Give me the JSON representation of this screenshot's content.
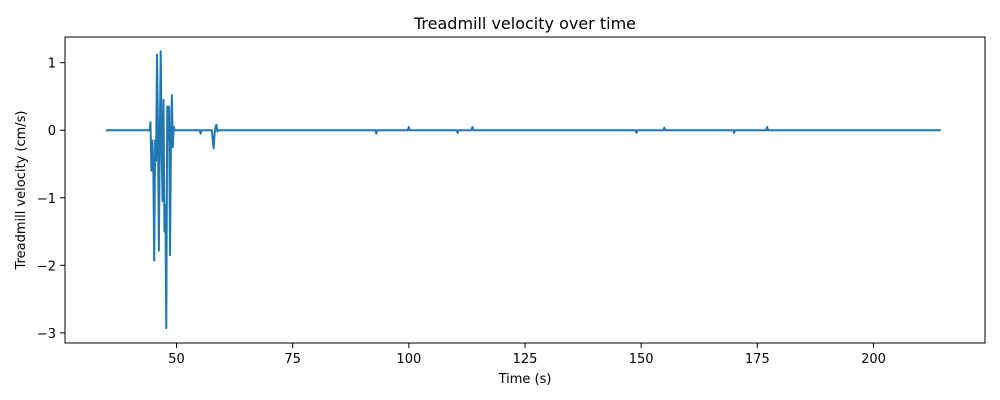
{
  "chart_data": {
    "type": "line",
    "title": "Treadmill velocity over time",
    "xlabel": "Time (s)",
    "ylabel": "Treadmill velocity (cm/s)",
    "xlim": [
      26,
      224
    ],
    "ylim": [
      -3.15,
      1.38
    ],
    "x_ticks": [
      50,
      75,
      100,
      125,
      150,
      175,
      200
    ],
    "x_tick_labels": [
      "50",
      "75",
      "100",
      "125",
      "150",
      "175",
      "200"
    ],
    "y_ticks": [
      1,
      0,
      -1,
      -2,
      -3
    ],
    "y_tick_labels": [
      "1",
      "0",
      "−1",
      "−2",
      "−3"
    ],
    "grid": false,
    "series": [
      {
        "color": "#1f77b4",
        "x": [
          34.8,
          44.2,
          44.4,
          44.6,
          44.8,
          45.0,
          45.2,
          45.4,
          45.6,
          45.8,
          46.0,
          46.2,
          46.4,
          46.6,
          46.8,
          47.0,
          47.2,
          47.4,
          47.6,
          47.8,
          48.0,
          48.2,
          48.4,
          48.6,
          48.8,
          49.0,
          49.2,
          49.4,
          49.6,
          49.8,
          50.0,
          50.2,
          50.4,
          50.6,
          50.8,
          51.0,
          51.2,
          51.4,
          51.6,
          55.0,
          55.2,
          55.4,
          57.6,
          57.8,
          58.0,
          58.2,
          58.4,
          58.6,
          58.8,
          59.0,
          59.2,
          92.8,
          93.0,
          93.2,
          99.8,
          100.0,
          100.2,
          110.3,
          110.5,
          110.7,
          113.5,
          113.7,
          113.9,
          148.8,
          149.0,
          149.2,
          154.8,
          155.0,
          155.2,
          169.8,
          170.0,
          170.2,
          176.9,
          177.1,
          177.3,
          214.5
        ],
        "y": [
          0.0,
          0.0,
          0.12,
          -0.6,
          -0.15,
          -0.5,
          -1.93,
          -0.15,
          -0.45,
          1.12,
          0.05,
          -1.78,
          -0.1,
          1.17,
          -0.3,
          -1.05,
          0.45,
          -1.5,
          -1.1,
          -2.93,
          0.35,
          -0.15,
          0.35,
          -1.85,
          -0.2,
          0.52,
          -0.25,
          0.05,
          0.0,
          0.0,
          0.0,
          0.0,
          0.0,
          0.0,
          0.0,
          0.0,
          0.0,
          0.0,
          0.0,
          0.0,
          -0.05,
          0.0,
          0.0,
          -0.15,
          -0.27,
          -0.05,
          0.05,
          0.08,
          -0.02,
          0.0,
          0.0,
          0.0,
          -0.05,
          0.0,
          0.0,
          0.05,
          0.0,
          0.0,
          -0.04,
          0.0,
          0.0,
          0.05,
          0.0,
          0.0,
          -0.04,
          0.0,
          0.0,
          0.04,
          0.0,
          0.0,
          -0.04,
          0.0,
          0.0,
          0.05,
          0.0,
          0.0
        ]
      }
    ]
  }
}
